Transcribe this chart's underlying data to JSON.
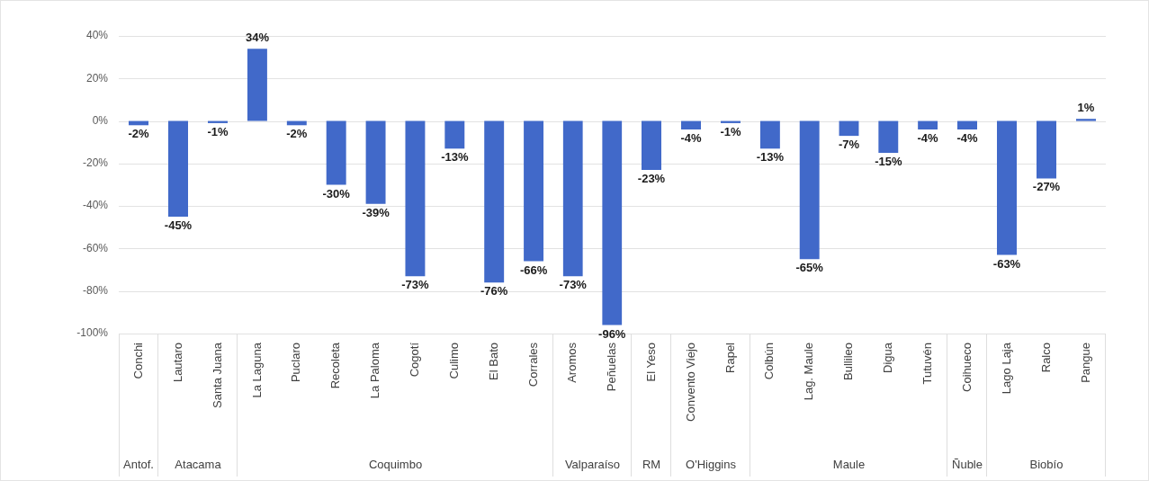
{
  "chart_data": [
    {
      "type": "bar",
      "categories": [
        "Conchi"
      ],
      "values": [
        -2
      ],
      "value_labels": [
        "-2%"
      ],
      "color": "#4169c9",
      "xlabel": "Antof.",
      "ylim": [
        -100,
        40
      ],
      "yticks": [
        {
          "value": 40,
          "label": "40%"
        },
        {
          "value": 20,
          "label": "20%"
        },
        {
          "value": 0,
          "label": "0%"
        },
        {
          "value": -20,
          "label": "-20%"
        },
        {
          "value": -40,
          "label": "-40%"
        },
        {
          "value": -60,
          "label": "-60%"
        },
        {
          "value": -80,
          "label": "-80%"
        },
        {
          "value": -100,
          "label": "-100%"
        }
      ],
      "grid": "y"
    },
    {
      "type": "bar",
      "categories": [
        "Lautaro",
        "Santa Juana"
      ],
      "values": [
        -45,
        -1
      ],
      "value_labels": [
        "-45%",
        "-1%"
      ],
      "color": "#4169c9",
      "xlabel": "Atacama",
      "ylim": [
        -100,
        40
      ],
      "yticks": [
        40,
        20,
        0,
        -20,
        -40,
        -60,
        -80,
        -100
      ],
      "grid": "y",
      "tick_labels": "x"
    },
    {
      "type": "bar",
      "categories": [
        "La Laguna",
        "Puclaro",
        "Recoleta",
        "La Paloma",
        "Cogotí",
        "Culimo",
        "El Bato",
        "Corrales"
      ],
      "values": [
        34,
        -2,
        -30,
        -39,
        -73,
        -13,
        -76,
        -66
      ],
      "value_labels": [
        "34%",
        "-2%",
        "-30%",
        "-39%",
        "-73%",
        "-13%",
        "-76%",
        "-66%"
      ],
      "color": "#4169c9",
      "xlabel": "Coquimbo",
      "ylim": [
        -100,
        40
      ],
      "yticks": [
        40,
        20,
        0,
        -20,
        -40,
        -60,
        -80,
        -100
      ],
      "grid": "y",
      "tick_labels": "x"
    },
    {
      "type": "bar",
      "categories": [
        "Aromos",
        "Peñuelas"
      ],
      "values": [
        -73,
        -96
      ],
      "value_labels": [
        "-73%",
        "-96%"
      ],
      "color": "#4169c9",
      "xlabel": "Valparaíso",
      "ylim": [
        -100,
        40
      ],
      "yticks": [
        40,
        20,
        0,
        -20,
        -40,
        -60,
        -80,
        -100
      ],
      "grid": "y",
      "tick_labels": "x"
    },
    {
      "type": "bar",
      "categories": [
        "El Yeso"
      ],
      "values": [
        -23
      ],
      "value_labels": [
        "-23%"
      ],
      "color": "#4169c9",
      "xlabel": "RM",
      "ylim": [
        -100,
        40
      ],
      "yticks": [
        40,
        20,
        0,
        -20,
        -40,
        -60,
        -80,
        -100
      ],
      "grid": "y",
      "tick_labels": "x"
    },
    {
      "type": "bar",
      "categories": [
        "Convento Viejo",
        "Rapel"
      ],
      "values": [
        -4,
        -1
      ],
      "value_labels": [
        "-4%",
        "-1%"
      ],
      "color": "#4169c9",
      "xlabel": "O'Higgins",
      "ylim": [
        -100,
        40
      ],
      "yticks": [
        40,
        20,
        0,
        -20,
        -40,
        -60,
        -80,
        -100
      ],
      "grid": "y",
      "tick_labels": "x"
    },
    {
      "type": "bar",
      "categories": [
        "Colbún",
        "Lag. Maule",
        "Bullileo",
        "Digua",
        "Tutuvén"
      ],
      "values": [
        -13,
        -65,
        -7,
        -15,
        -4
      ],
      "value_labels": [
        "-13%",
        "-65%",
        "-7%",
        "-15%",
        "-4%"
      ],
      "color": "#4169c9",
      "xlabel": "Maule",
      "ylim": [
        -100,
        40
      ],
      "yticks": [
        40,
        20,
        0,
        -20,
        -40,
        -60,
        -80,
        -100
      ],
      "grid": "y",
      "tick_labels": "x"
    },
    {
      "type": "bar",
      "categories": [
        "Coihueco"
      ],
      "values": [
        -4
      ],
      "value_labels": [
        "-4%"
      ],
      "color": "#4169c9",
      "xlabel": "Ñuble",
      "ylim": [
        -100,
        40
      ],
      "yticks": [
        40,
        20,
        0,
        -20,
        -40,
        -60,
        -80,
        -100
      ],
      "grid": "y",
      "tick_labels": "x"
    },
    {
      "type": "bar",
      "categories": [
        "Lago Laja",
        "Ralco",
        "Pangue"
      ],
      "values": [
        -63,
        -27,
        1
      ],
      "value_labels": [
        "-63%",
        "-27%",
        "1%"
      ],
      "color": "#4169c9",
      "xlabel": "Biobío",
      "ylim": [
        -100,
        40
      ],
      "yticks": [
        40,
        20,
        0,
        -20,
        -40,
        -60,
        -80,
        -100
      ],
      "grid": "y",
      "tick_labels": "x"
    }
  ]
}
